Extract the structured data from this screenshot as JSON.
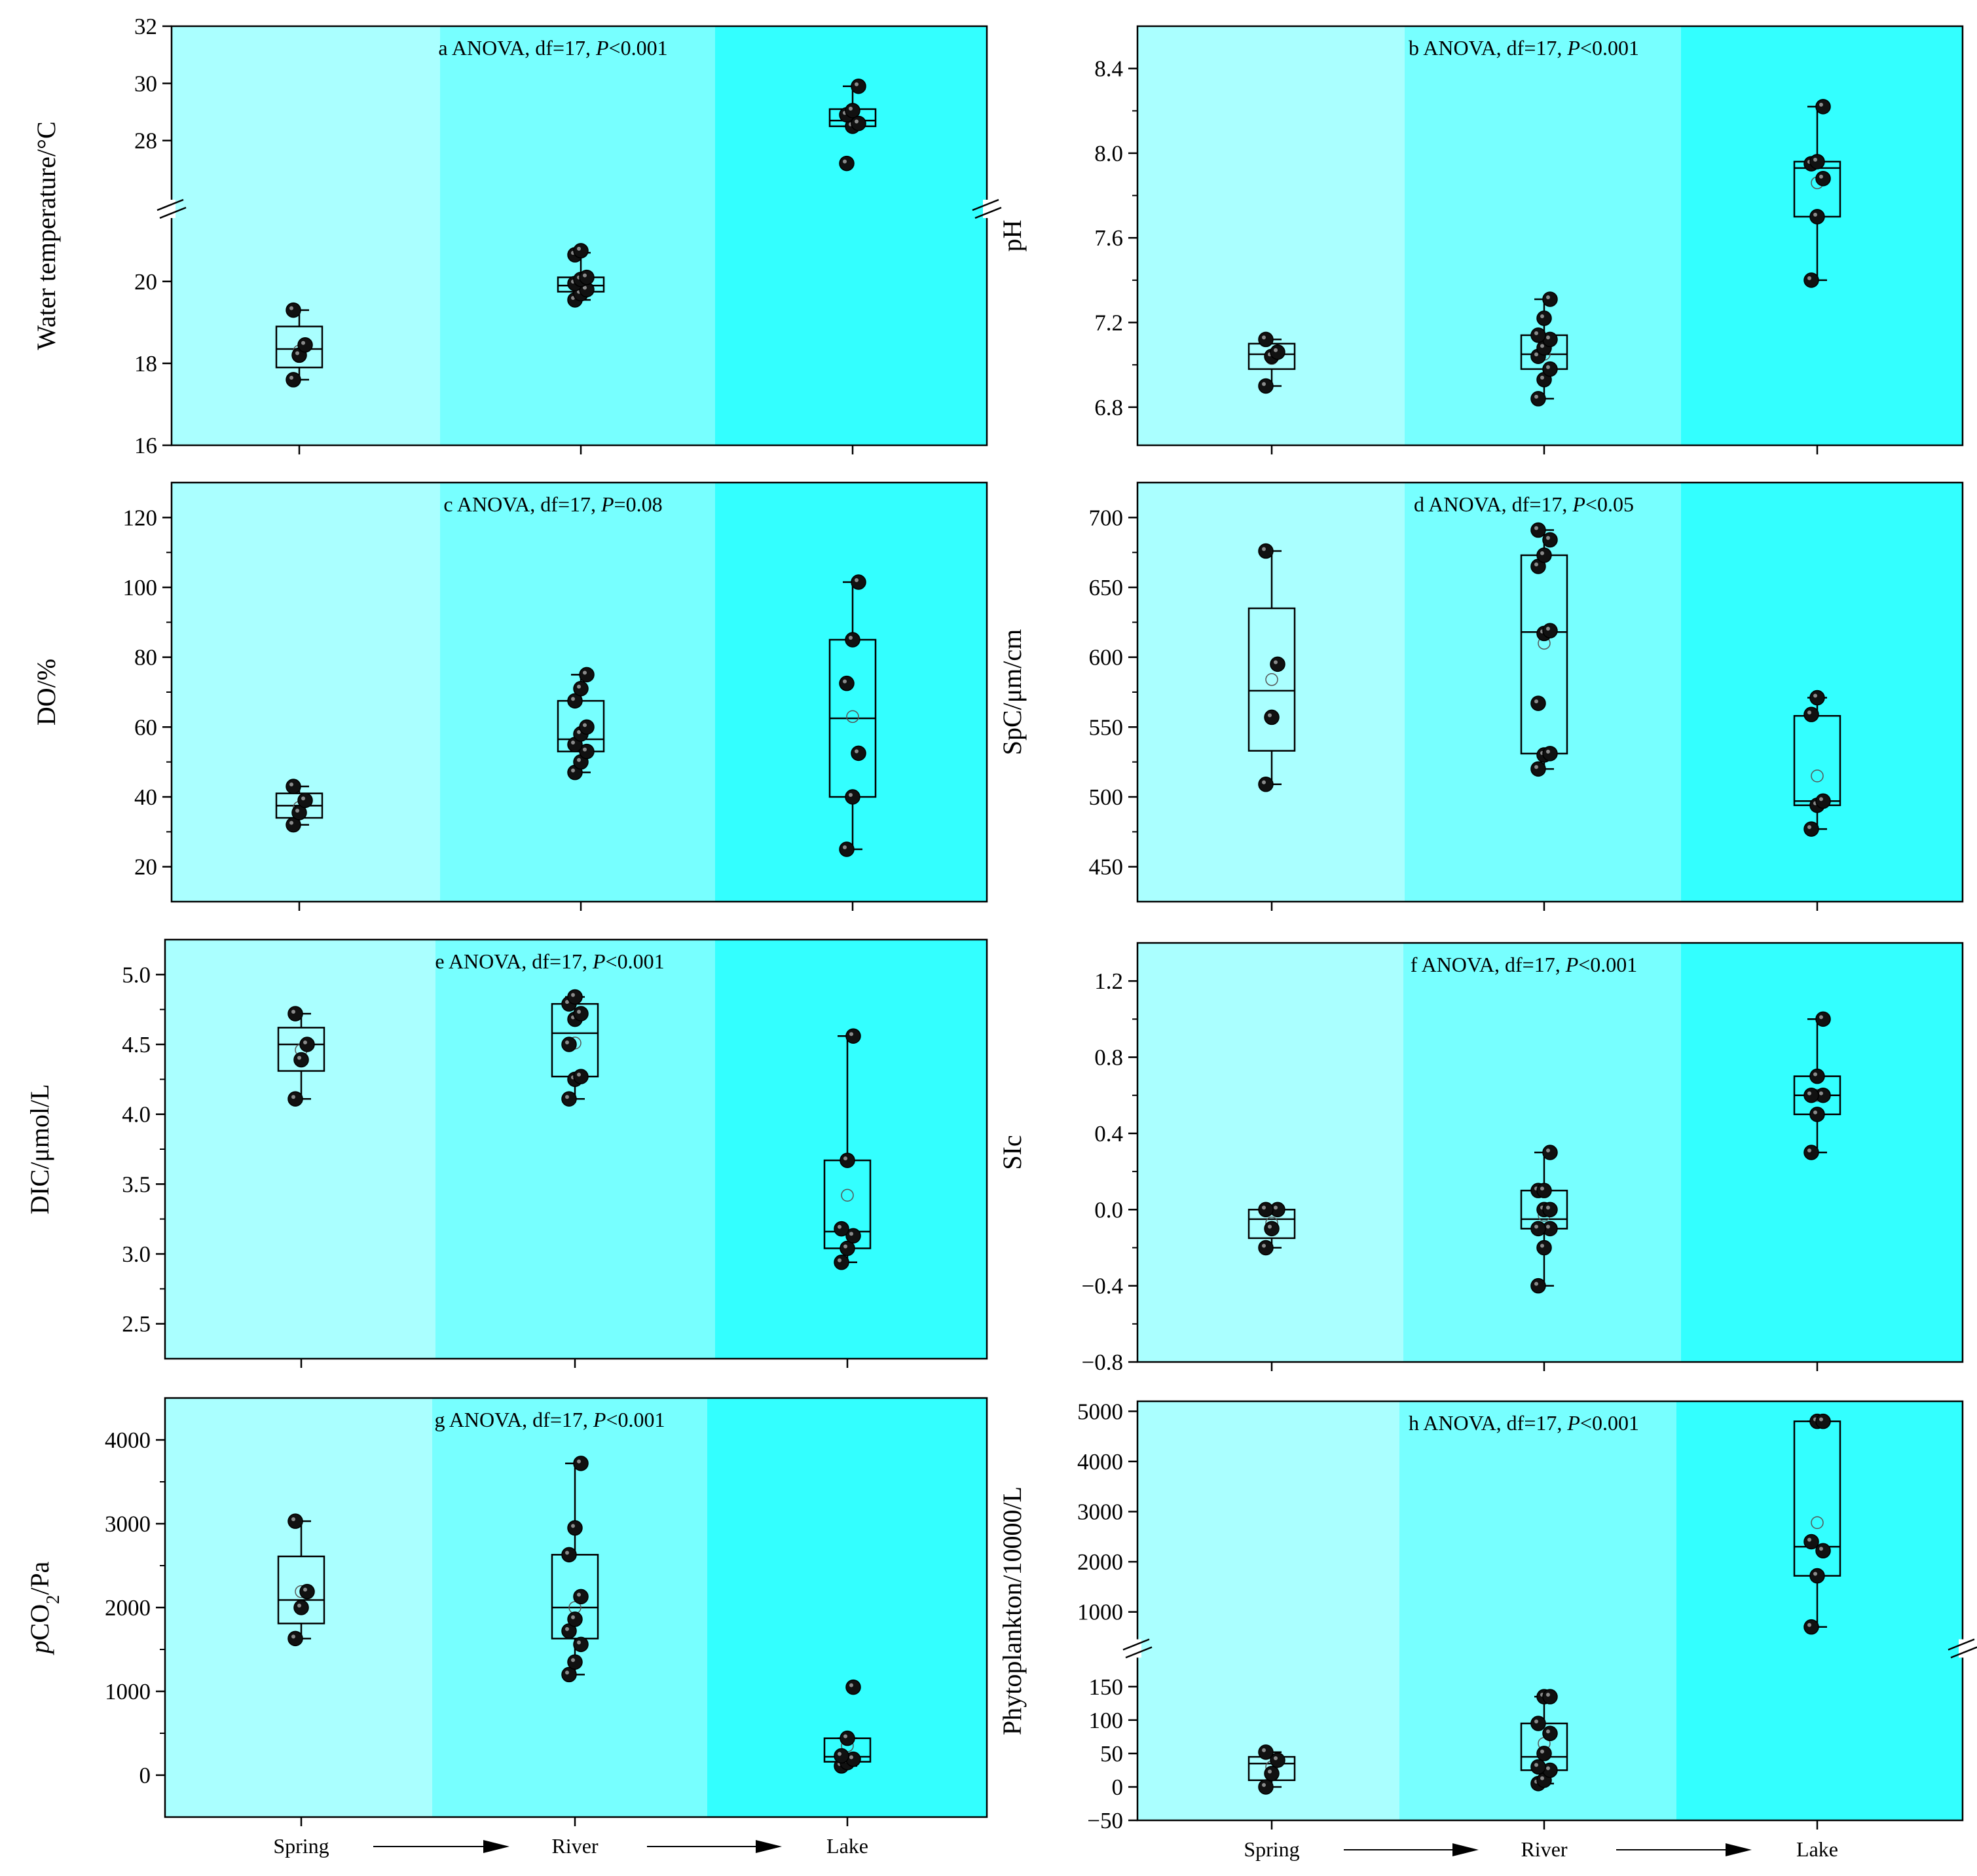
{
  "figure": {
    "x_categories": [
      "Spring",
      "River",
      "Lake"
    ],
    "bands": [
      "#aaffff",
      "#77ffff",
      "#33ffff"
    ]
  },
  "chart_data": [
    {
      "id": "a",
      "type": "box",
      "panel_letter": "a",
      "annotation": "ANOVA, df=17, ",
      "p_text": "<0.001",
      "ylabel": "Water temperature/°C",
      "broken_axis": true,
      "y_segments": [
        {
          "range": [
            16,
            21.5
          ],
          "ticks": [
            16,
            18,
            20
          ]
        },
        {
          "range": [
            26,
            32
          ],
          "ticks": [
            28,
            30,
            32
          ]
        }
      ],
      "groups": [
        {
          "category": "Spring",
          "q1": 17.9,
          "median": 18.35,
          "q3": 18.9,
          "whisker_low": 17.6,
          "whisker_high": 19.3,
          "mean": 18.3,
          "points": [
            17.6,
            18.2,
            18.45,
            19.3
          ]
        },
        {
          "category": "River",
          "q1": 19.75,
          "median": 19.9,
          "q3": 20.1,
          "whisker_low": 19.55,
          "whisker_high": 20.7,
          "mean": 19.95,
          "points": [
            19.55,
            19.7,
            19.8,
            19.95,
            20.05,
            20.1,
            20.65,
            20.75
          ]
        },
        {
          "category": "Lake",
          "q1": 28.5,
          "median": 28.7,
          "q3": 29.1,
          "whisker_low": 28.5,
          "whisker_high": 29.9,
          "mean": 28.7,
          "points": [
            27.2,
            28.5,
            28.6,
            28.9,
            29.05,
            29.9
          ]
        }
      ]
    },
    {
      "id": "b",
      "type": "box",
      "panel_letter": "b",
      "annotation": "ANOVA, df=17, ",
      "p_text": "<0.001",
      "ylabel": "pH",
      "ylim": [
        6.62,
        8.6
      ],
      "ticks": [
        6.8,
        7.2,
        7.6,
        8.0,
        8.4
      ],
      "decimals": 1,
      "groups": [
        {
          "category": "Spring",
          "q1": 6.98,
          "median": 7.05,
          "q3": 7.1,
          "whisker_low": 6.9,
          "whisker_high": 7.12,
          "mean": 7.03,
          "points": [
            6.9,
            7.04,
            7.06,
            7.12
          ]
        },
        {
          "category": "River",
          "q1": 6.98,
          "median": 7.05,
          "q3": 7.14,
          "whisker_low": 6.84,
          "whisker_high": 7.31,
          "mean": 7.05,
          "points": [
            6.84,
            6.93,
            6.98,
            7.04,
            7.08,
            7.12,
            7.14,
            7.22,
            7.31
          ]
        },
        {
          "category": "Lake",
          "q1": 7.7,
          "median": 7.93,
          "q3": 7.96,
          "whisker_low": 7.4,
          "whisker_high": 8.22,
          "mean": 7.86,
          "points": [
            7.4,
            7.7,
            7.88,
            7.95,
            7.96,
            8.22
          ]
        }
      ]
    },
    {
      "id": "c",
      "type": "box",
      "panel_letter": "c",
      "annotation": "ANOVA, df=17, ",
      "p_text": "=0.08",
      "ylabel": "DO/%",
      "ylim": [
        10,
        130
      ],
      "ticks": [
        20,
        40,
        60,
        80,
        100,
        120
      ],
      "decimals": 0,
      "groups": [
        {
          "category": "Spring",
          "q1": 34,
          "median": 37.5,
          "q3": 41,
          "whisker_low": 32,
          "whisker_high": 43,
          "mean": 37,
          "points": [
            32,
            35.5,
            39,
            43
          ]
        },
        {
          "category": "River",
          "q1": 53,
          "median": 56.5,
          "q3": 67.5,
          "whisker_low": 47,
          "whisker_high": 75,
          "mean": 58.5,
          "points": [
            47,
            50,
            53,
            55,
            58,
            60,
            67.5,
            71,
            75
          ]
        },
        {
          "category": "Lake",
          "q1": 40,
          "median": 62.5,
          "q3": 85,
          "whisker_low": 25,
          "whisker_high": 101.5,
          "mean": 63,
          "points": [
            25,
            40,
            52.5,
            72.5,
            85,
            101.5
          ]
        }
      ]
    },
    {
      "id": "d",
      "type": "box",
      "panel_letter": "d",
      "annotation": "ANOVA, df=17, ",
      "p_text": "<0.05",
      "ylabel": "SpC/μm/cm",
      "ylim": [
        425,
        725
      ],
      "ticks": [
        450,
        500,
        550,
        600,
        650,
        700
      ],
      "decimals": 0,
      "groups": [
        {
          "category": "Spring",
          "q1": 533,
          "median": 576,
          "q3": 635,
          "whisker_low": 509,
          "whisker_high": 676,
          "mean": 584,
          "points": [
            509,
            557,
            595,
            676
          ]
        },
        {
          "category": "River",
          "q1": 531,
          "median": 618,
          "q3": 673,
          "whisker_low": 520,
          "whisker_high": 691,
          "mean": 610,
          "points": [
            520,
            530,
            531,
            567,
            617,
            619,
            665,
            673,
            684,
            691
          ]
        },
        {
          "category": "Lake",
          "q1": 494,
          "median": 497,
          "q3": 558,
          "whisker_low": 477,
          "whisker_high": 571,
          "mean": 515,
          "points": [
            477,
            494,
            497,
            559,
            571
          ]
        }
      ]
    },
    {
      "id": "e",
      "type": "box",
      "panel_letter": "e",
      "annotation": "ANOVA, df=17, ",
      "p_text": "<0.001",
      "ylabel": "DIC/μmol/L",
      "ylim": [
        2.25,
        5.25
      ],
      "ticks": [
        2.5,
        3.0,
        3.5,
        4.0,
        4.5,
        5.0
      ],
      "decimals": 1,
      "groups": [
        {
          "category": "Spring",
          "q1": 4.31,
          "median": 4.5,
          "q3": 4.62,
          "whisker_low": 4.11,
          "whisker_high": 4.72,
          "mean": 4.46,
          "points": [
            4.11,
            4.39,
            4.5,
            4.72
          ]
        },
        {
          "category": "River",
          "q1": 4.27,
          "median": 4.58,
          "q3": 4.79,
          "whisker_low": 4.11,
          "whisker_high": 4.84,
          "mean": 4.51,
          "points": [
            4.11,
            4.25,
            4.27,
            4.5,
            4.68,
            4.72,
            4.79,
            4.84
          ]
        },
        {
          "category": "Lake",
          "q1": 3.04,
          "median": 3.16,
          "q3": 3.67,
          "whisker_low": 2.94,
          "whisker_high": 4.56,
          "mean": 3.42,
          "points": [
            2.94,
            3.04,
            3.13,
            3.18,
            3.67,
            4.56
          ]
        }
      ]
    },
    {
      "id": "f",
      "type": "box",
      "panel_letter": "f",
      "annotation": "ANOVA, df=17, ",
      "p_text": "<0.001",
      "ylabel": "SIc",
      "ylim": [
        -0.8,
        1.4
      ],
      "ticks": [
        -0.8,
        -0.4,
        0.0,
        0.4,
        0.8,
        1.2
      ],
      "decimals": 1,
      "groups": [
        {
          "category": "Spring",
          "q1": -0.15,
          "median": -0.05,
          "q3": 0.0,
          "whisker_low": -0.2,
          "whisker_high": 0.0,
          "mean": -0.07,
          "points": [
            -0.2,
            -0.1,
            0.0,
            0.0
          ]
        },
        {
          "category": "River",
          "q1": -0.1,
          "median": -0.05,
          "q3": 0.1,
          "whisker_low": -0.4,
          "whisker_high": 0.3,
          "mean": -0.03,
          "points": [
            -0.4,
            -0.2,
            -0.1,
            -0.1,
            0.0,
            0.0,
            0.1,
            0.1,
            0.3
          ]
        },
        {
          "category": "Lake",
          "q1": 0.5,
          "median": 0.6,
          "q3": 0.7,
          "whisker_low": 0.3,
          "whisker_high": 1.0,
          "mean": 0.6,
          "points": [
            0.3,
            0.5,
            0.6,
            0.6,
            0.7,
            1.0
          ]
        }
      ]
    },
    {
      "id": "g",
      "type": "box",
      "panel_letter": "g",
      "annotation": "ANOVA, df=17, ",
      "p_text": "<0.001",
      "ylabel_italic": "p",
      "ylabel_main": "CO",
      "ylabel_sub": "2",
      "ylabel_tail": "/Pa",
      "ylim": [
        -500,
        4500
      ],
      "ticks": [
        0,
        1000,
        2000,
        3000,
        4000
      ],
      "decimals": 0,
      "groups": [
        {
          "category": "Spring",
          "q1": 1810,
          "median": 2090,
          "q3": 2610,
          "whisker_low": 1630,
          "whisker_high": 3030,
          "mean": 2190,
          "points": [
            1630,
            2000,
            2190,
            3030
          ]
        },
        {
          "category": "River",
          "q1": 1630,
          "median": 2000,
          "q3": 2630,
          "whisker_low": 1200,
          "whisker_high": 3720,
          "mean": 2000,
          "points": [
            1200,
            1350,
            1560,
            1720,
            1860,
            2130,
            2630,
            2950,
            3720
          ]
        },
        {
          "category": "Lake",
          "q1": 160,
          "median": 220,
          "q3": 440,
          "whisker_low": 110,
          "whisker_high": 440,
          "mean": 350,
          "points": [
            110,
            150,
            190,
            230,
            440,
            1050
          ]
        }
      ]
    },
    {
      "id": "h",
      "type": "box",
      "panel_letter": "h",
      "annotation": "ANOVA, df=17, ",
      "p_text": "<0.001",
      "ylabel": "Phytoplankton/10000/L",
      "broken_axis": true,
      "y_segments": [
        {
          "range": [
            -50,
            190
          ],
          "ticks": [
            -50,
            0,
            50,
            100,
            150
          ]
        },
        {
          "range": [
            500,
            5200
          ],
          "ticks": [
            1000,
            2000,
            3000,
            4000,
            5000
          ]
        }
      ],
      "groups": [
        {
          "category": "Spring",
          "q1": 10,
          "median": 35,
          "q3": 45,
          "whisker_low": 0,
          "whisker_high": 52,
          "mean": 30,
          "points": [
            0,
            20,
            40,
            52
          ]
        },
        {
          "category": "River",
          "q1": 25,
          "median": 45,
          "q3": 95,
          "whisker_low": 5,
          "whisker_high": 135,
          "mean": 65,
          "points": [
            5,
            10,
            25,
            30,
            50,
            80,
            95,
            135,
            135
          ]
        },
        {
          "category": "Lake",
          "q1": 1720,
          "median": 2300,
          "q3": 4800,
          "whisker_low": 700,
          "whisker_high": 4800,
          "mean": 2780,
          "points": [
            700,
            1720,
            2220,
            2400,
            4800,
            4800
          ]
        }
      ]
    }
  ]
}
